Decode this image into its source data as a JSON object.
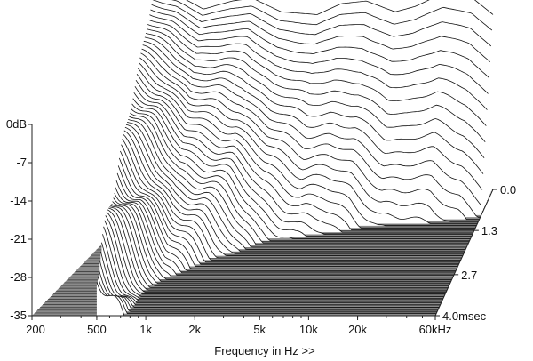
{
  "chart_data": {
    "type": "waterfall",
    "xlabel": "Frequency in Hz >>",
    "x_ticks": [
      "200",
      "500",
      "1k",
      "2k",
      "5k",
      "10k",
      "20k",
      "60kHz"
    ],
    "x_tick_values": [
      200,
      500,
      1000,
      2000,
      5000,
      10000,
      20000,
      60000
    ],
    "xlim": [
      200,
      60000
    ],
    "x_scale": "log",
    "y_ticks": [
      "0dB",
      "-7",
      "-14",
      "-21",
      "-28",
      "-35"
    ],
    "y_tick_values": [
      0,
      -7,
      -14,
      -21,
      -28,
      -35
    ],
    "ylim": [
      -35,
      0
    ],
    "z_ticks": [
      "0.0",
      "1.3",
      "2.7",
      "4.0msec"
    ],
    "z_tick_values": [
      0.0,
      1.3,
      2.7,
      4.0
    ],
    "zlim": [
      0.0,
      4.0
    ],
    "series_count": 60,
    "grid": false,
    "fill_color": "#ffffff",
    "line_color": "#111111",
    "floor_color": "#8a8a8a",
    "profile_points": [
      {
        "f": 500,
        "db": 1.5
      },
      {
        "f": 700,
        "db": 0.5
      },
      {
        "f": 1000,
        "db": -2.0
      },
      {
        "f": 1500,
        "db": -0.5
      },
      {
        "f": 2000,
        "db": 0.0
      },
      {
        "f": 3000,
        "db": -2.5
      },
      {
        "f": 5000,
        "db": -3.0
      },
      {
        "f": 7000,
        "db": -1.0
      },
      {
        "f": 10000,
        "db": -0.5
      },
      {
        "f": 15000,
        "db": -2.5
      },
      {
        "f": 20000,
        "db": -1.5
      },
      {
        "f": 30000,
        "db": 1.0
      },
      {
        "f": 45000,
        "db": 0.0
      },
      {
        "f": 60000,
        "db": -3.0
      }
    ]
  }
}
